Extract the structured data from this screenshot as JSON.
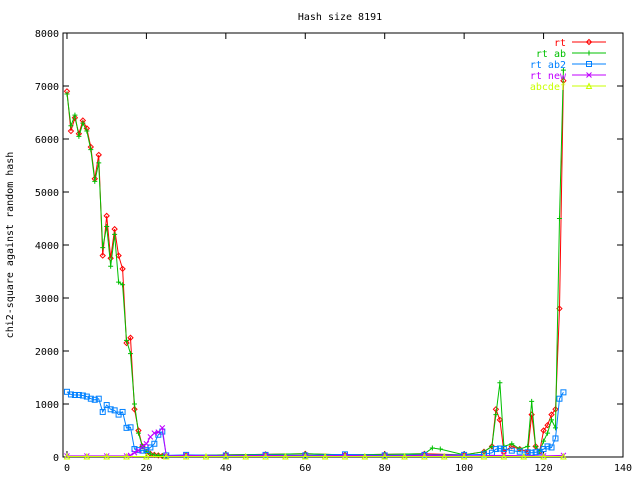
{
  "chart_data": {
    "type": "line",
    "title": "Hash size 8191",
    "xlabel": "",
    "ylabel": "chi2-square against random hash",
    "xlim": [
      -1,
      140
    ],
    "ylim": [
      0,
      8000
    ],
    "xticks": [
      0,
      20,
      40,
      60,
      80,
      100,
      120,
      140
    ],
    "yticks": [
      0,
      1000,
      2000,
      3000,
      4000,
      5000,
      6000,
      7000,
      8000
    ],
    "xtick_labels": [
      "0",
      "20",
      "40",
      "60",
      "80",
      "100",
      "120",
      "140"
    ],
    "ytick_labels": [
      "0",
      "1000",
      "2000",
      "3000",
      "4000",
      "5000",
      "6000",
      "7000",
      "8000"
    ],
    "grid": false,
    "legend_position": "top-right",
    "series": [
      {
        "name": "rt",
        "color": "#ff0000",
        "marker": "diamond",
        "x": [
          0,
          1,
          2,
          3,
          4,
          5,
          6,
          7,
          8,
          9,
          10,
          11,
          12,
          13,
          14,
          15,
          16,
          17,
          18,
          19,
          20,
          21,
          22,
          23,
          24,
          25,
          30,
          40,
          50,
          60,
          70,
          80,
          90,
          100,
          105,
          107,
          108,
          109,
          110,
          112,
          114,
          116,
          117,
          118,
          119,
          120,
          121,
          122,
          123,
          124,
          125
        ],
        "y": [
          6900,
          6150,
          6400,
          6100,
          6350,
          6200,
          5850,
          5250,
          5700,
          3800,
          4550,
          3750,
          4300,
          3800,
          3550,
          2150,
          2250,
          900,
          500,
          200,
          100,
          60,
          40,
          30,
          20,
          15,
          30,
          40,
          50,
          60,
          40,
          50,
          60,
          40,
          100,
          200,
          900,
          700,
          100,
          200,
          150,
          100,
          800,
          200,
          100,
          500,
          600,
          800,
          900,
          2800,
          7100
        ]
      },
      {
        "name": "rt ab",
        "color": "#00c000",
        "marker": "plus",
        "x": [
          0,
          1,
          2,
          3,
          4,
          5,
          6,
          7,
          8,
          9,
          10,
          11,
          12,
          13,
          14,
          15,
          16,
          17,
          18,
          19,
          20,
          21,
          22,
          23,
          24,
          25,
          30,
          40,
          50,
          60,
          70,
          80,
          90,
          92,
          94,
          100,
          105,
          107,
          108,
          109,
          110,
          112,
          114,
          116,
          117,
          118,
          119,
          120,
          121,
          122,
          123,
          124,
          125
        ],
        "y": [
          6850,
          6250,
          6450,
          6050,
          6300,
          6150,
          5800,
          5200,
          5550,
          3950,
          4350,
          3600,
          4200,
          3300,
          3250,
          2200,
          1950,
          1000,
          450,
          200,
          100,
          60,
          40,
          30,
          20,
          15,
          30,
          40,
          50,
          60,
          40,
          50,
          60,
          170,
          150,
          40,
          100,
          200,
          800,
          1400,
          200,
          250,
          150,
          200,
          1050,
          200,
          100,
          300,
          450,
          700,
          550,
          4500,
          7300
        ]
      },
      {
        "name": "rt ab2",
        "color": "#0080ff",
        "marker": "square",
        "x": [
          0,
          1,
          2,
          3,
          4,
          5,
          6,
          7,
          8,
          9,
          10,
          11,
          12,
          13,
          14,
          15,
          16,
          17,
          18,
          19,
          20,
          21,
          22,
          23,
          24,
          25,
          30,
          40,
          50,
          60,
          70,
          80,
          90,
          100,
          105,
          107,
          108,
          109,
          110,
          112,
          114,
          116,
          117,
          118,
          119,
          120,
          121,
          122,
          123,
          124,
          125
        ],
        "y": [
          1230,
          1180,
          1170,
          1170,
          1160,
          1140,
          1100,
          1080,
          1100,
          850,
          980,
          900,
          880,
          800,
          850,
          550,
          560,
          150,
          130,
          120,
          130,
          180,
          250,
          420,
          480,
          30,
          40,
          30,
          40,
          30,
          50,
          30,
          40,
          40,
          50,
          80,
          150,
          160,
          150,
          120,
          100,
          90,
          80,
          90,
          100,
          150,
          200,
          180,
          350,
          1100,
          1220
        ]
      },
      {
        "name": "rt new",
        "color": "#c000ff",
        "marker": "cross",
        "x": [
          0,
          5,
          10,
          15,
          16,
          17,
          18,
          19,
          20,
          21,
          22,
          23,
          24,
          25,
          30,
          40,
          50,
          60,
          70,
          80,
          90,
          100,
          110,
          120,
          125
        ],
        "y": [
          20,
          20,
          20,
          20,
          30,
          80,
          120,
          200,
          250,
          380,
          450,
          470,
          550,
          20,
          30,
          20,
          30,
          20,
          30,
          20,
          30,
          20,
          30,
          20,
          30
        ]
      },
      {
        "name": "abcdef",
        "color": "#c8ff00",
        "marker": "triangle",
        "x": [
          0,
          5,
          10,
          15,
          20,
          25,
          30,
          35,
          40,
          45,
          50,
          55,
          60,
          65,
          70,
          75,
          80,
          85,
          90,
          95,
          100,
          105,
          110,
          115,
          120,
          125
        ],
        "y": [
          10,
          10,
          10,
          10,
          10,
          10,
          10,
          10,
          10,
          10,
          10,
          10,
          10,
          10,
          10,
          10,
          10,
          10,
          10,
          10,
          10,
          10,
          10,
          10,
          10,
          10
        ]
      }
    ]
  }
}
